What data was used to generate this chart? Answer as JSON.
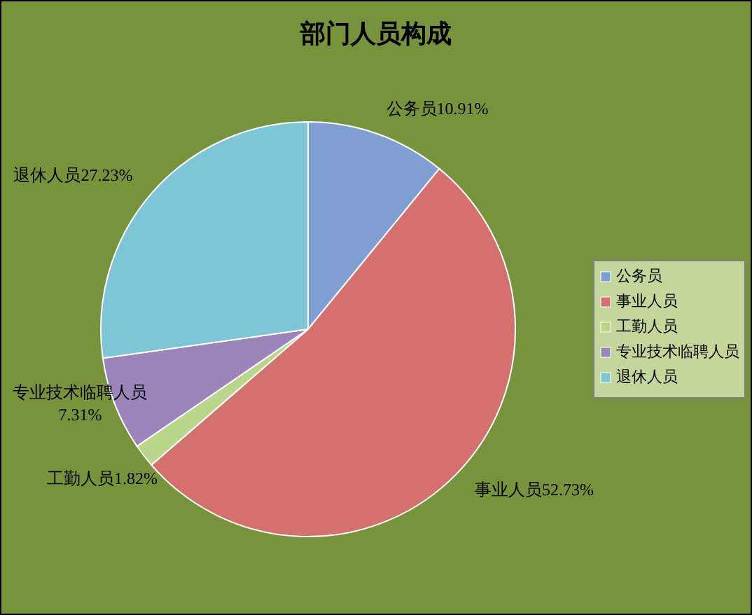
{
  "chart_data": {
    "type": "pie",
    "title": "部门人员构成",
    "categories": [
      "公务员",
      "事业人员",
      "工勤人员",
      "专业技术临聘人员",
      "退休人员"
    ],
    "values": [
      10.91,
      52.73,
      1.82,
      7.31,
      27.23
    ],
    "colors": [
      "#7f9fd2",
      "#d4716f",
      "#b9d68b",
      "#9b85bb",
      "#7cc6d8"
    ],
    "value_labels": [
      "10.91%",
      "52.73%",
      "1.82%",
      "7.31%",
      "27.23%"
    ],
    "legend": "right"
  }
}
